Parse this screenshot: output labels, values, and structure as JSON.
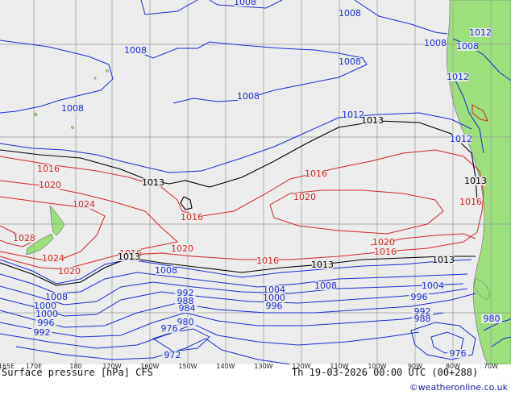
{
  "map": {
    "title": "Surface pressure [hPa] CFS",
    "valid_time": "Th 19-03-2026 00:00 UTC (00+288)",
    "credit": "©weatheronline.co.uk",
    "lon_labels": [
      "165E",
      "170E",
      "180",
      "170W",
      "160W",
      "150W",
      "140W",
      "130W",
      "120W",
      "110W",
      "100W",
      "90W",
      "80W",
      "70W"
    ],
    "colors": {
      "background": "#ececec",
      "land": "#9be07a",
      "grid": "#9a9a9a",
      "low_isobar": "#1a2fd6",
      "high_isobar": "#d42a2a",
      "reference_isobar": "#000000",
      "credit": "#1a1aa0"
    },
    "isobars": {
      "blue_labels": [
        "1008",
        "1008",
        "1008",
        "1008",
        "1008",
        "1008",
        "1008",
        "1008",
        "1012",
        "1012",
        "1012",
        "1012",
        "1008",
        "1008",
        "1008",
        "1004",
        "1004",
        "1000",
        "1000",
        "1000",
        "996",
        "996",
        "996",
        "992",
        "992",
        "992",
        "988",
        "988",
        "984",
        "980",
        "980",
        "976",
        "976",
        "972"
      ],
      "red_labels": [
        "1016",
        "1020",
        "1024",
        "1028",
        "1024",
        "1020",
        "1016",
        "1016",
        "1020",
        "1016",
        "1020",
        "1016",
        "1016",
        "1020",
        "1016"
      ],
      "black_labels": [
        "1013",
        "1013",
        "1013",
        "1013",
        "1013",
        "1013"
      ]
    }
  }
}
